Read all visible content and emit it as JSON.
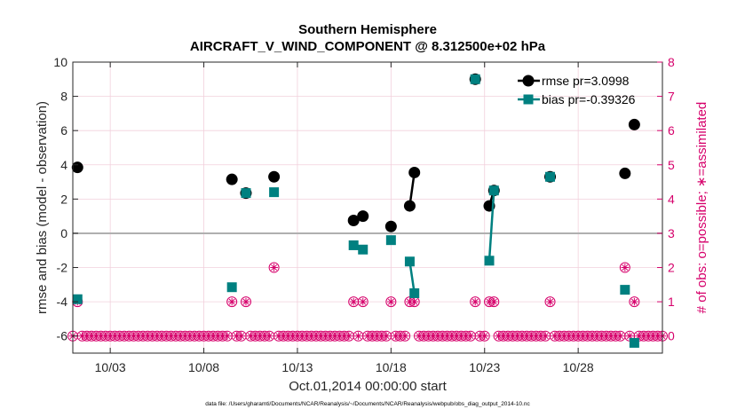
{
  "chart_data": {
    "type": "line",
    "title": "Southern Hemisphere",
    "subtitle": "AIRCRAFT_V_WIND_COMPONENT @ 8.312500e+02 hPa",
    "xlabel": "Oct.01,2014 00:00:00 start",
    "ylabel_left": "rmse and bias (model - observation)",
    "ylabel_right": "# of obs: o=possible; ∗=assimilated",
    "footer": "data file: /Users/gharamti/Documents/NCAR/Reanalysis/~/Documents/NCAR/Reanalysis/webpub/obs_diag_output_2014-10.nc",
    "xlim": [
      1,
      32.5
    ],
    "ylim_left": [
      -7,
      10
    ],
    "ylim_right": [
      -0.5,
      8
    ],
    "x_ticks": [
      3,
      8,
      13,
      18,
      23,
      28
    ],
    "x_tick_labels": [
      "10/03",
      "10/08",
      "10/13",
      "10/18",
      "10/23",
      "10/28"
    ],
    "y_left_ticks": [
      -6,
      -4,
      -2,
      0,
      2,
      4,
      6,
      8,
      10
    ],
    "y_left_tick_labels": [
      "-6",
      "-4",
      "-2",
      "0",
      "2",
      "4",
      "6",
      "8",
      "10"
    ],
    "y_right_ticks": [
      0,
      1,
      2,
      3,
      4,
      5,
      6,
      7,
      8
    ],
    "y_right_tick_labels": [
      "0",
      "1",
      "2",
      "3",
      "4",
      "5",
      "6",
      "7",
      "8"
    ],
    "zero_line": 0,
    "colors": {
      "rmse": "#000000",
      "bias": "#008080",
      "obs": "#d6006b",
      "grid": "#f2d0dc",
      "zero": "#b0b0b0"
    },
    "series": [
      {
        "name": "rmse",
        "legend": "rmse pr=3.0998",
        "marker": "circle",
        "segments": [
          [
            [
              1.25,
              3.85
            ]
          ],
          [
            [
              9.5,
              3.15
            ]
          ],
          [
            [
              10.25,
              2.35
            ]
          ],
          [
            [
              11.75,
              3.3
            ]
          ],
          [
            [
              16.0,
              0.75
            ],
            [
              16.5,
              1.0
            ]
          ],
          [
            [
              18.0,
              0.4
            ]
          ],
          [
            [
              19.0,
              1.6
            ],
            [
              19.25,
              3.55
            ]
          ],
          [
            [
              22.5,
              9.0
            ]
          ],
          [
            [
              23.25,
              1.6
            ],
            [
              23.5,
              2.5
            ]
          ],
          [
            [
              26.5,
              3.3
            ]
          ],
          [
            [
              30.5,
              3.5
            ]
          ],
          [
            [
              31.0,
              6.35
            ]
          ]
        ]
      },
      {
        "name": "bias",
        "legend": "bias pr=-0.39326",
        "marker": "square",
        "segments": [
          [
            [
              1.25,
              -3.85
            ]
          ],
          [
            [
              9.5,
              -3.15
            ]
          ],
          [
            [
              10.25,
              2.35
            ]
          ],
          [
            [
              11.75,
              2.4
            ]
          ],
          [
            [
              16.0,
              -0.7
            ],
            [
              16.5,
              -0.95
            ]
          ],
          [
            [
              18.0,
              -0.4
            ]
          ],
          [
            [
              19.0,
              -1.65
            ],
            [
              19.25,
              -3.5
            ]
          ],
          [
            [
              22.5,
              9.0
            ]
          ],
          [
            [
              23.25,
              -1.6
            ],
            [
              23.5,
              2.5
            ]
          ],
          [
            [
              26.5,
              3.3
            ]
          ],
          [
            [
              30.5,
              -3.3
            ]
          ],
          [
            [
              31.0,
              -6.4
            ]
          ]
        ]
      }
    ],
    "obs_counts": {
      "x_start": 1.0,
      "x_step": 0.25,
      "n": 127,
      "nonzero": [
        [
          1.25,
          1
        ],
        [
          9.5,
          1
        ],
        [
          10.25,
          1
        ],
        [
          11.75,
          2
        ],
        [
          16.0,
          1
        ],
        [
          16.5,
          1
        ],
        [
          18.0,
          1
        ],
        [
          19.0,
          1
        ],
        [
          19.25,
          1
        ],
        [
          22.5,
          1
        ],
        [
          23.25,
          1
        ],
        [
          23.5,
          1
        ],
        [
          26.5,
          1
        ],
        [
          30.5,
          2
        ],
        [
          31.0,
          1
        ]
      ]
    }
  }
}
